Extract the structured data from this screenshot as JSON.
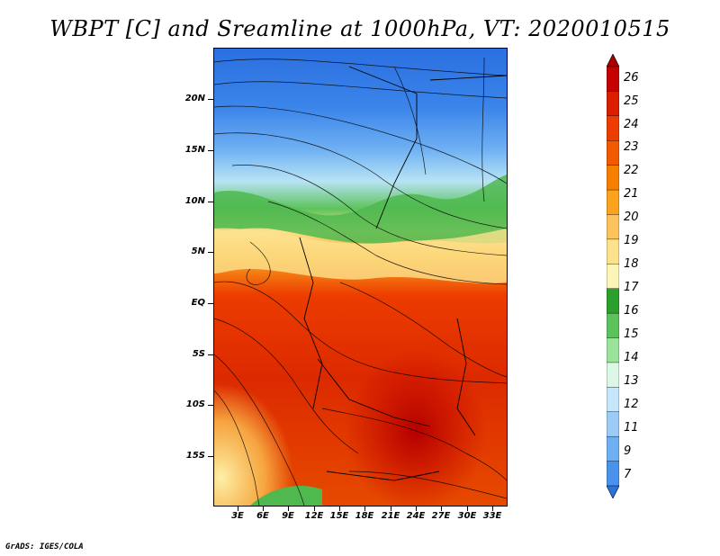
{
  "title": "WBPT [C] and Sreamline at 1000hPa, VT: 2020010515",
  "credit": "GrADS: IGES/COLA",
  "map": {
    "variable": "WBPT [C]",
    "level": "1000hPa",
    "valid_time": "2020010515",
    "lat_ticks": [
      "20N",
      "15N",
      "10N",
      "5N",
      "EQ",
      "5S",
      "10S",
      "15S"
    ],
    "lon_ticks": [
      "3E",
      "6E",
      "9E",
      "12E",
      "15E",
      "18E",
      "21E",
      "24E",
      "27E",
      "30E",
      "33E"
    ]
  },
  "colorbar": {
    "labels": [
      "26",
      "25",
      "24",
      "23",
      "22",
      "21",
      "20",
      "19",
      "18",
      "17",
      "16",
      "15",
      "14",
      "13",
      "12",
      "11",
      "9",
      "7"
    ],
    "colors": [
      "#a50000",
      "#c40000",
      "#dc1e00",
      "#ec3c00",
      "#f25a00",
      "#f77f00",
      "#fba21e",
      "#fcc25c",
      "#fde28e",
      "#fdf5b8",
      "#2ca02c",
      "#5cc35c",
      "#9ae39a",
      "#ddf7e6",
      "#c6e6fb",
      "#9ccbf7",
      "#6fb0f3",
      "#4a93ec",
      "#2b74e0"
    ]
  }
}
